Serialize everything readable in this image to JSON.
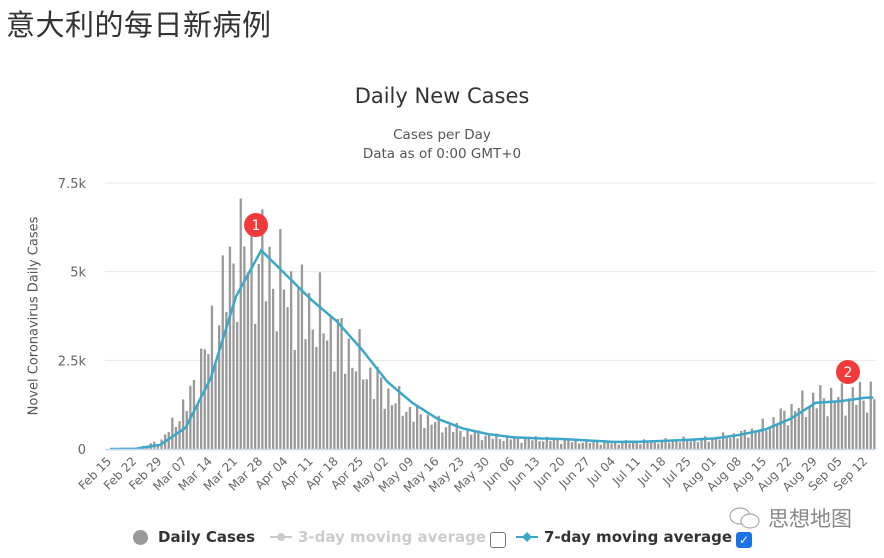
{
  "page": {
    "title": "意大利的每日新病例"
  },
  "watermark": {
    "text": "思想地图",
    "icon": "wechat-icon"
  },
  "legend": {
    "items": [
      {
        "label": "Daily Cases",
        "color": "#999999",
        "active": true
      },
      {
        "label": "3-day moving average",
        "color": "#cccccc",
        "active": false
      },
      {
        "label": "7-day moving average",
        "color": "#3ba7c9",
        "active": true
      }
    ],
    "checkboxes": [
      {
        "checked": false
      },
      {
        "checked": true
      }
    ]
  },
  "annotations": [
    {
      "label": "1",
      "note": "first wave peak ~Mar 27"
    },
    {
      "label": "2",
      "note": "second rise ~Sep 05"
    }
  ],
  "chart_data": {
    "type": "bar",
    "title": "Daily New Cases",
    "subtitle": "Cases per Day",
    "subtitle2": "Data as of 0:00 GMT+0",
    "xlabel": "",
    "ylabel": "Novel Coronavirus Daily Cases",
    "ylim": [
      0,
      7500
    ],
    "yticks": [
      "0",
      "2.5k",
      "5k",
      "7.5k"
    ],
    "grid": true,
    "categories": [
      "Feb 15",
      "Feb 22",
      "Feb 29",
      "Mar 07",
      "Mar 14",
      "Mar 21",
      "Mar 28",
      "Apr 04",
      "Apr 11",
      "Apr 18",
      "Apr 25",
      "May 02",
      "May 09",
      "May 16",
      "May 23",
      "May 30",
      "Jun 06",
      "Jun 13",
      "Jun 20",
      "Jun 27",
      "Jul 04",
      "Jul 11",
      "Jul 18",
      "Jul 25",
      "Aug 01",
      "Aug 08",
      "Aug 15",
      "Aug 22",
      "Aug 29",
      "Sep 05",
      "Sep 12"
    ],
    "series": [
      {
        "name": "Daily Cases",
        "type": "bar",
        "color": "#999999",
        "weekly_approx_values": [
          0,
          5,
          240,
          1250,
          3200,
          5600,
          5200,
          4400,
          3800,
          3100,
          2300,
          1500,
          1000,
          700,
          500,
          350,
          290,
          280,
          230,
          200,
          180,
          200,
          230,
          260,
          300,
          420,
          650,
          1100,
          1400,
          1450,
          1500
        ]
      },
      {
        "name": "7-day moving average",
        "type": "line",
        "color": "#3ba7c9",
        "weekly_approx_values": [
          0,
          5,
          120,
          600,
          2000,
          4300,
          5600,
          4900,
          4200,
          3600,
          2800,
          1900,
          1300,
          850,
          580,
          420,
          330,
          300,
          280,
          240,
          200,
          205,
          230,
          260,
          300,
          400,
          550,
          850,
          1300,
          1350,
          1450
        ]
      }
    ],
    "peak_daily": 6550
  }
}
